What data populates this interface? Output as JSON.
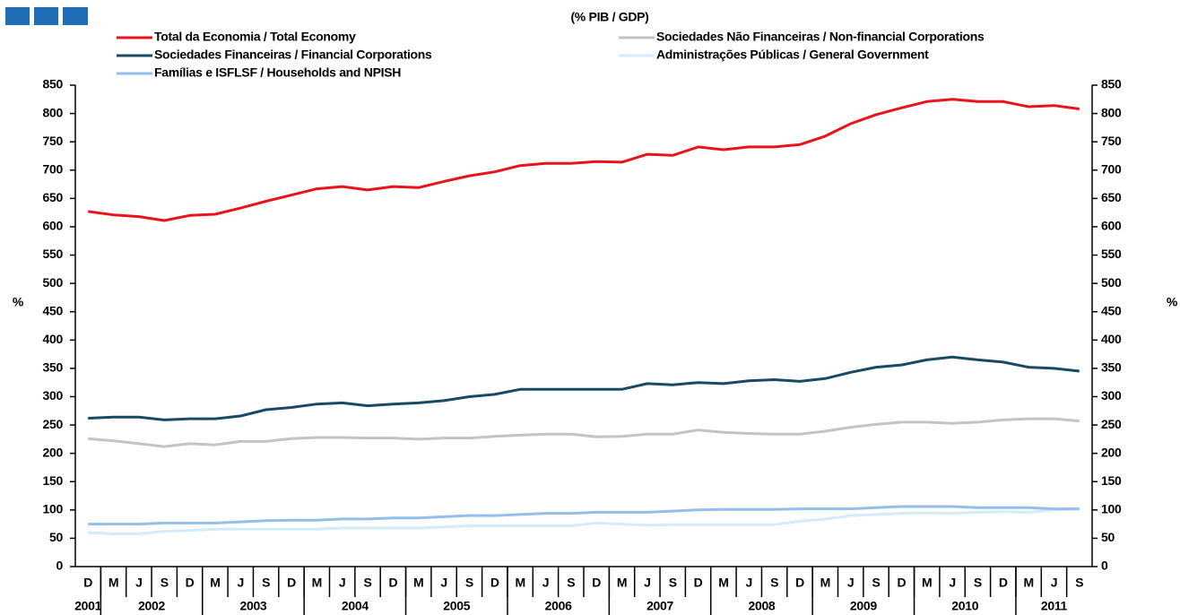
{
  "chart_data": {
    "type": "line",
    "title": "(% PIB / GDP)",
    "y_label": "%",
    "categories": [
      "D",
      "M",
      "J",
      "S",
      "D",
      "M",
      "J",
      "S",
      "D",
      "M",
      "J",
      "S",
      "D",
      "M",
      "J",
      "S",
      "D",
      "M",
      "J",
      "S",
      "D",
      "M",
      "J",
      "S",
      "D",
      "M",
      "J",
      "S",
      "D",
      "M",
      "J",
      "S",
      "D",
      "M",
      "J",
      "S",
      "D",
      "M",
      "J",
      "S"
    ],
    "years": [
      "2001",
      "2002",
      "2003",
      "2004",
      "2005",
      "2006",
      "2007",
      "2008",
      "2009",
      "2010",
      "2011"
    ],
    "ylim": [
      0,
      850
    ],
    "yticks": [
      0,
      50,
      100,
      150,
      200,
      250,
      300,
      350,
      400,
      450,
      500,
      550,
      600,
      650,
      700,
      750,
      800,
      850
    ],
    "y2lim": [
      0,
      850
    ],
    "y2ticks": [
      0,
      50,
      100,
      150,
      200,
      250,
      300,
      350,
      400,
      450,
      500,
      550,
      600,
      650,
      700,
      750,
      800,
      850
    ],
    "series": [
      {
        "name": "Total da Economia / Total Economy",
        "color": "#e8141b",
        "values": [
          627,
          621,
          618,
          611,
          620,
          622,
          633,
          645,
          656,
          667,
          671,
          665,
          671,
          669,
          680,
          690,
          697,
          708,
          712,
          712,
          715,
          714,
          728,
          726,
          741,
          736,
          741,
          741,
          745,
          760,
          782,
          798,
          810,
          821,
          825,
          821,
          821,
          812,
          814,
          808
        ]
      },
      {
        "name": "Sociedades Não Financeiras / Non-financial Corporations",
        "color": "#c3c3c3",
        "values": [
          226,
          222,
          217,
          212,
          217,
          215,
          221,
          221,
          226,
          228,
          228,
          227,
          227,
          225,
          227,
          227,
          230,
          232,
          234,
          234,
          229,
          230,
          234,
          234,
          241,
          237,
          235,
          234,
          234,
          239,
          246,
          251,
          255,
          255,
          253,
          255,
          259,
          261,
          261,
          257
        ]
      },
      {
        "name": "Sociedades Financeiras / Financial Corporations",
        "color": "#184a63",
        "values": [
          262,
          264,
          264,
          259,
          261,
          261,
          266,
          277,
          281,
          287,
          289,
          284,
          287,
          289,
          293,
          300,
          304,
          313,
          313,
          313,
          313,
          313,
          323,
          321,
          325,
          323,
          328,
          330,
          327,
          332,
          343,
          352,
          356,
          365,
          370,
          365,
          361,
          352,
          350,
          345
        ]
      },
      {
        "name": "Administrações Públicas / General Government",
        "color": "#d3ebfa",
        "values": [
          60,
          58,
          58,
          62,
          64,
          66,
          66,
          66,
          66,
          66,
          68,
          68,
          68,
          68,
          70,
          72,
          72,
          72,
          72,
          72,
          77,
          75,
          73,
          74,
          74,
          74,
          74,
          74,
          80,
          84,
          90,
          92,
          94,
          95,
          94,
          96,
          97,
          96,
          100,
          102
        ]
      },
      {
        "name": "Famílias e ISFLSF / Households and NPISH",
        "color": "#94bfea",
        "values": [
          75,
          75,
          75,
          77,
          77,
          77,
          79,
          81,
          82,
          82,
          84,
          84,
          86,
          86,
          88,
          90,
          90,
          92,
          94,
          94,
          96,
          96,
          96,
          98,
          100,
          101,
          101,
          101,
          102,
          102,
          102,
          104,
          106,
          106,
          106,
          104,
          104,
          104,
          102,
          102
        ]
      }
    ]
  }
}
